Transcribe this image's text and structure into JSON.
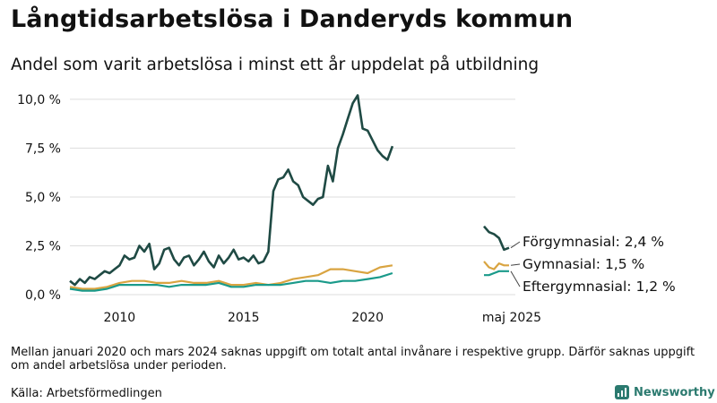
{
  "title": "Långtidsarbetslösa i Danderyds kommun",
  "subtitle": "Andel som varit arbetslösa i minst ett år uppdelat på utbildning",
  "footnote": "Mellan januari 2020 och mars 2024 saknas uppgift om totalt antal invånare i respektive grupp. Därför saknas uppgift om andel arbetslösa under perioden.",
  "source": "Källa: Arbetsförmedlingen",
  "brand": "Newsworthy",
  "colors": {
    "forgymnasial": "#1f4a44",
    "gymnasial": "#d9a441",
    "eftergymnasial": "#1a9a8a",
    "grid": "#dddddd",
    "brand": "#2b7a6f"
  },
  "chart_data": {
    "type": "line",
    "ylim": [
      0,
      10.5
    ],
    "yticks": [
      "0,0 %",
      "2,5 %",
      "5,0 %",
      "7,5 %",
      "10,0 %"
    ],
    "ytick_values": [
      0,
      2.5,
      5,
      7.5,
      10
    ],
    "xlim": [
      2008.0,
      2021.8
    ],
    "xticks": [
      "2010",
      "2015",
      "2020"
    ],
    "xtick_values": [
      2010,
      2015,
      2020
    ],
    "latest_label": "maj 2025",
    "series": [
      {
        "key": "forgymnasial",
        "name": "Förgymnasial",
        "value_label": "Förgymnasial: 2,4 %",
        "x": [
          2008.0,
          2008.2,
          2008.4,
          2008.6,
          2008.8,
          2009.0,
          2009.2,
          2009.4,
          2009.6,
          2009.8,
          2010.0,
          2010.2,
          2010.4,
          2010.6,
          2010.8,
          2011.0,
          2011.2,
          2011.4,
          2011.6,
          2011.8,
          2012.0,
          2012.2,
          2012.4,
          2012.6,
          2012.8,
          2013.0,
          2013.2,
          2013.4,
          2013.6,
          2013.8,
          2014.0,
          2014.2,
          2014.4,
          2014.6,
          2014.8,
          2015.0,
          2015.2,
          2015.4,
          2015.6,
          2015.8,
          2016.0,
          2016.2,
          2016.4,
          2016.6,
          2016.8,
          2017.0,
          2017.2,
          2017.4,
          2017.6,
          2017.8,
          2018.0,
          2018.2,
          2018.4,
          2018.6,
          2018.8,
          2019.0,
          2019.2,
          2019.4,
          2019.6,
          2019.8,
          2020.0,
          2020.2,
          2020.4,
          2020.6,
          2020.8,
          2021.0
        ],
        "y": [
          0.7,
          0.5,
          0.8,
          0.6,
          0.9,
          0.8,
          1.0,
          1.2,
          1.1,
          1.3,
          1.5,
          2.0,
          1.8,
          1.9,
          2.5,
          2.2,
          2.6,
          1.3,
          1.6,
          2.3,
          2.4,
          1.8,
          1.5,
          1.9,
          2.0,
          1.5,
          1.8,
          2.2,
          1.7,
          1.4,
          2.0,
          1.6,
          1.9,
          2.3,
          1.8,
          1.9,
          1.7,
          2.0,
          1.6,
          1.7,
          2.2,
          5.3,
          5.9,
          6.0,
          6.4,
          5.8,
          5.6,
          5.0,
          4.8,
          4.6,
          4.9,
          5.0,
          6.6,
          5.8,
          7.5,
          8.2,
          9.0,
          9.8,
          10.2,
          8.5,
          8.4,
          7.9,
          7.4,
          7.1,
          6.9,
          7.6
        ],
        "latest_x": [
          2025.0,
          2025.1,
          2025.2,
          2025.3,
          2025.4,
          2025.5
        ],
        "latest_y": [
          3.5,
          3.2,
          3.1,
          2.9,
          2.3,
          2.4
        ]
      },
      {
        "key": "gymnasial",
        "name": "Gymnasial",
        "value_label": "Gymnasial: 1,5 %",
        "x": [
          2008.0,
          2008.5,
          2009.0,
          2009.5,
          2010.0,
          2010.5,
          2011.0,
          2011.5,
          2012.0,
          2012.5,
          2013.0,
          2013.5,
          2014.0,
          2014.5,
          2015.0,
          2015.5,
          2016.0,
          2016.5,
          2017.0,
          2017.5,
          2018.0,
          2018.5,
          2019.0,
          2019.5,
          2020.0,
          2020.5,
          2021.0
        ],
        "y": [
          0.4,
          0.3,
          0.3,
          0.4,
          0.6,
          0.7,
          0.7,
          0.6,
          0.6,
          0.7,
          0.6,
          0.6,
          0.7,
          0.5,
          0.5,
          0.6,
          0.5,
          0.6,
          0.8,
          0.9,
          1.0,
          1.3,
          1.3,
          1.2,
          1.1,
          1.4,
          1.5
        ],
        "latest_x": [
          2025.0,
          2025.1,
          2025.2,
          2025.3,
          2025.4,
          2025.5
        ],
        "latest_y": [
          1.7,
          1.4,
          1.3,
          1.6,
          1.5,
          1.5
        ]
      },
      {
        "key": "eftergymnasial",
        "name": "Eftergymnasial",
        "value_label": "Eftergymnasial: 1,2 %",
        "x": [
          2008.0,
          2008.5,
          2009.0,
          2009.5,
          2010.0,
          2010.5,
          2011.0,
          2011.5,
          2012.0,
          2012.5,
          2013.0,
          2013.5,
          2014.0,
          2014.5,
          2015.0,
          2015.5,
          2016.0,
          2016.5,
          2017.0,
          2017.5,
          2018.0,
          2018.5,
          2019.0,
          2019.5,
          2020.0,
          2020.5,
          2021.0
        ],
        "y": [
          0.3,
          0.2,
          0.2,
          0.3,
          0.5,
          0.5,
          0.5,
          0.5,
          0.4,
          0.5,
          0.5,
          0.5,
          0.6,
          0.4,
          0.4,
          0.5,
          0.5,
          0.5,
          0.6,
          0.7,
          0.7,
          0.6,
          0.7,
          0.7,
          0.8,
          0.9,
          1.1
        ],
        "latest_x": [
          2025.0,
          2025.1,
          2025.2,
          2025.3,
          2025.4,
          2025.5
        ],
        "latest_y": [
          1.0,
          1.0,
          1.1,
          1.2,
          1.2,
          1.2
        ]
      }
    ]
  }
}
